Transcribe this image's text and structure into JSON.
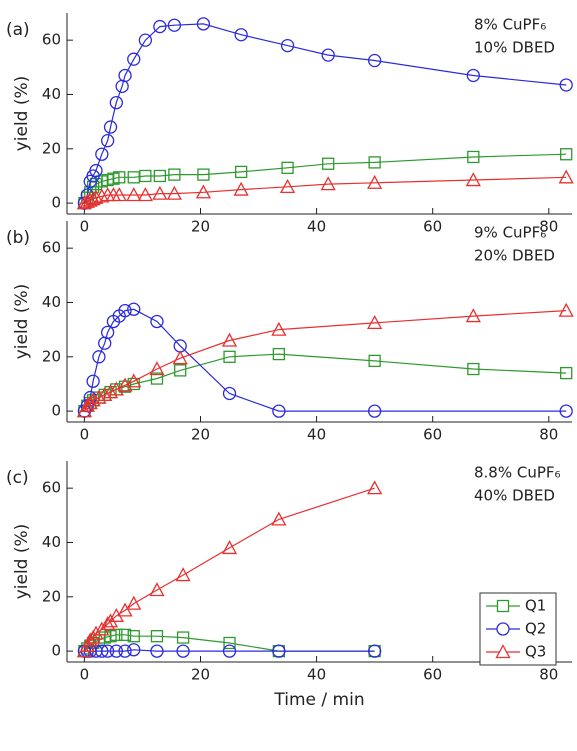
{
  "chart_data": [
    {
      "type": "line",
      "panel_label": "(a)",
      "annotations": [
        "8% CuPF₆",
        "10% DBED"
      ],
      "y_label": "yield (%)",
      "xlim": [
        -3,
        84
      ],
      "ylim": [
        -4,
        70
      ],
      "xticks": [
        0,
        20,
        40,
        60,
        80
      ],
      "yticks": [
        0,
        20,
        40,
        60
      ],
      "series": [
        {
          "color": "#2e9a2e",
          "marker": "square",
          "x": [
            0,
            0.5,
            1,
            1.5,
            2,
            3,
            4,
            5,
            6,
            8.5,
            10.5,
            13,
            15.5,
            20.5,
            27,
            35,
            42,
            50,
            67,
            83
          ],
          "values": [
            0,
            2,
            4,
            6,
            7,
            8,
            8.5,
            9,
            9.5,
            9.5,
            10,
            10,
            10.5,
            10.5,
            11.5,
            13,
            14.5,
            15,
            17,
            18
          ]
        },
        {
          "color": "#2b2bdd",
          "marker": "circle",
          "x": [
            0,
            0.5,
            1,
            1.5,
            2,
            3,
            4,
            4.5,
            5.5,
            6.5,
            7,
            8.5,
            10.5,
            13,
            15.5,
            20.5,
            27,
            35,
            42,
            50,
            67,
            83
          ],
          "values": [
            0,
            3,
            8,
            10,
            12,
            18,
            23,
            28,
            37,
            43,
            47,
            53,
            60,
            65,
            65.5,
            66,
            62,
            58,
            54.5,
            52.5,
            47,
            43.5
          ]
        },
        {
          "color": "#e83030",
          "marker": "triangle",
          "x": [
            0,
            0.5,
            1,
            1.5,
            2,
            3,
            4,
            5,
            6,
            8.5,
            10.5,
            13,
            15.5,
            20.5,
            27,
            35,
            42,
            50,
            67,
            83
          ],
          "values": [
            0,
            0.5,
            1,
            1.5,
            2,
            2.5,
            3,
            3,
            3,
            3,
            3,
            3.5,
            3.5,
            4,
            5,
            6,
            7,
            7.5,
            8.5,
            9.5
          ]
        }
      ]
    },
    {
      "type": "line",
      "panel_label": "(b)",
      "annotations": [
        "9% CuPF₆",
        "20% DBED"
      ],
      "y_label": "yield (%)",
      "xlim": [
        -3,
        84
      ],
      "ylim": [
        -4,
        70
      ],
      "xticks": [
        0,
        20,
        40,
        60,
        80
      ],
      "yticks": [
        0,
        20,
        40,
        60
      ],
      "series": [
        {
          "color": "#2e9a2e",
          "marker": "square",
          "x": [
            0,
            0.5,
            1,
            1.5,
            2.5,
            3.5,
            4.5,
            5.5,
            7,
            8.5,
            12.5,
            16.5,
            25,
            33.5,
            50,
            67,
            83
          ],
          "values": [
            0,
            2,
            3,
            4,
            5,
            6,
            7,
            8,
            9,
            10,
            12,
            15,
            20,
            21,
            18.5,
            15.5,
            14
          ]
        },
        {
          "color": "#2b2bdd",
          "marker": "circle",
          "x": [
            0,
            0.5,
            1,
            1.5,
            2.5,
            3.5,
            4,
            5,
            6,
            7,
            8.5,
            12.5,
            16.5,
            25,
            33.5,
            50,
            83
          ],
          "values": [
            0,
            2,
            5,
            11,
            20,
            25,
            29,
            33,
            35,
            37,
            37.5,
            33,
            24,
            6.5,
            0,
            0,
            0
          ]
        },
        {
          "color": "#e83030",
          "marker": "triangle",
          "x": [
            0,
            0.5,
            1,
            1.5,
            2.5,
            3.5,
            4.5,
            5.5,
            7,
            8.5,
            12.5,
            16.5,
            25,
            33.5,
            50,
            67,
            83
          ],
          "values": [
            0,
            2,
            3,
            4,
            5,
            6,
            7,
            8,
            9.5,
            11,
            15.5,
            19.5,
            26,
            30,
            32.5,
            35,
            37
          ]
        }
      ]
    },
    {
      "type": "line",
      "panel_label": "(c)",
      "annotations": [
        "8.8% CuPF₆",
        "40% DBED"
      ],
      "y_label": "yield (%)",
      "x_label": "Time / min",
      "xlim": [
        -3,
        84
      ],
      "ylim": [
        -4,
        70
      ],
      "xticks": [
        0,
        20,
        40,
        60,
        80
      ],
      "yticks": [
        0,
        20,
        40,
        60
      ],
      "legend": "right",
      "series": [
        {
          "name": "Q1",
          "color": "#2e9a2e",
          "marker": "square",
          "x": [
            0,
            0.5,
            1,
            1.5,
            2.5,
            3.5,
            4.5,
            5.5,
            7,
            8.5,
            12.5,
            17,
            25,
            33.5,
            50
          ],
          "values": [
            0,
            1,
            2,
            3,
            4,
            5,
            5.5,
            6,
            6,
            5.5,
            5.5,
            5,
            3,
            0,
            0
          ]
        },
        {
          "name": "Q2",
          "color": "#2b2bdd",
          "marker": "circle",
          "x": [
            0,
            0.5,
            1,
            2,
            3,
            4,
            5.5,
            7,
            8.5,
            12.5,
            17,
            25,
            33.5,
            50
          ],
          "values": [
            0,
            0,
            0,
            0,
            0,
            0,
            0,
            0,
            0.5,
            0,
            0,
            0,
            0,
            0
          ]
        },
        {
          "name": "Q3",
          "color": "#e83030",
          "marker": "triangle",
          "x": [
            0,
            0.5,
            1,
            1.5,
            2,
            3,
            4,
            4.5,
            5.5,
            7,
            8.5,
            12.5,
            17,
            25,
            33.5,
            50
          ],
          "values": [
            0,
            2,
            4,
            5,
            6.5,
            8,
            10,
            11,
            13,
            15,
            17.5,
            22.5,
            28,
            38,
            48.5,
            60
          ]
        }
      ]
    }
  ]
}
